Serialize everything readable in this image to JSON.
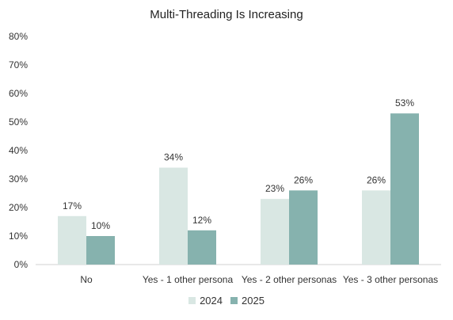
{
  "chart_data": {
    "type": "bar",
    "title": "Multi-Threading Is Increasing",
    "categories": [
      "No",
      "Yes - 1 other persona",
      "Yes - 2 other personas",
      "Yes - 3 other personas"
    ],
    "series": [
      {
        "name": "2024",
        "values": [
          17,
          34,
          23,
          26
        ],
        "color": "#d9e7e3",
        "labels": [
          "17%",
          "34%",
          "23%",
          "26%"
        ]
      },
      {
        "name": "2025",
        "values": [
          10,
          12,
          26,
          53
        ],
        "color": "#86b2ae",
        "labels": [
          "10%",
          "12%",
          "26%",
          "53%"
        ]
      }
    ],
    "ylim": [
      0,
      80
    ],
    "yticks": [
      "0%",
      "10%",
      "20%",
      "30%",
      "40%",
      "50%",
      "60%",
      "70%",
      "80%"
    ],
    "xlabel": "",
    "ylabel": "",
    "grid": false,
    "legend_position": "bottom"
  }
}
